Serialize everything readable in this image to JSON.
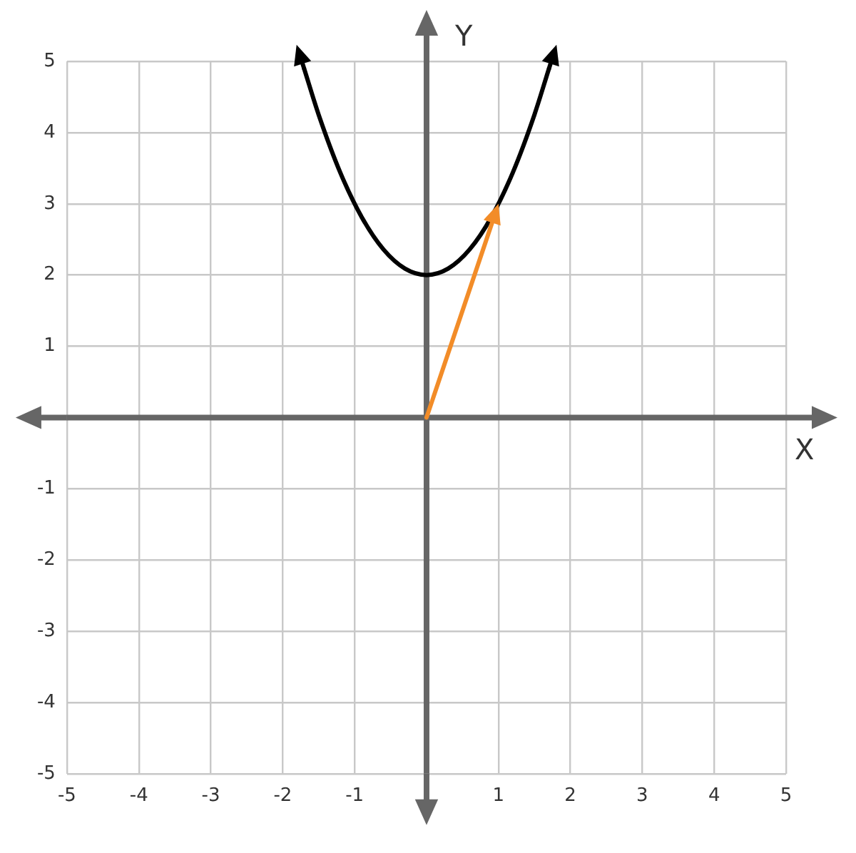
{
  "chart_data": {
    "type": "line",
    "xlabel": "X",
    "ylabel": "Y",
    "xlim": [
      -5,
      5
    ],
    "ylim": [
      -5,
      5
    ],
    "xticks": [
      -5,
      -4,
      -3,
      -2,
      -1,
      {
        "value": 0,
        "label": null
      },
      1,
      2,
      3,
      4,
      5
    ],
    "yticks": [
      -5,
      -4,
      -3,
      -2,
      -1,
      {
        "value": 0,
        "label": null
      },
      1,
      2,
      3,
      4,
      5
    ],
    "grid": true,
    "legend": false,
    "marker": "none",
    "line_style": "solid",
    "series": [
      {
        "color": "#000000",
        "x": [
          -1.7,
          -1.5,
          -1.2,
          -0.9,
          -0.6,
          -0.3,
          0,
          0.3,
          0.6,
          0.9,
          1.2,
          1.5,
          1.7
        ],
        "values": [
          4.89,
          4.25,
          3.44,
          2.81,
          2.36,
          2.09,
          2,
          2.09,
          2.36,
          2.81,
          3.44,
          4.25,
          4.89
        ]
      }
    ]
  }
}
